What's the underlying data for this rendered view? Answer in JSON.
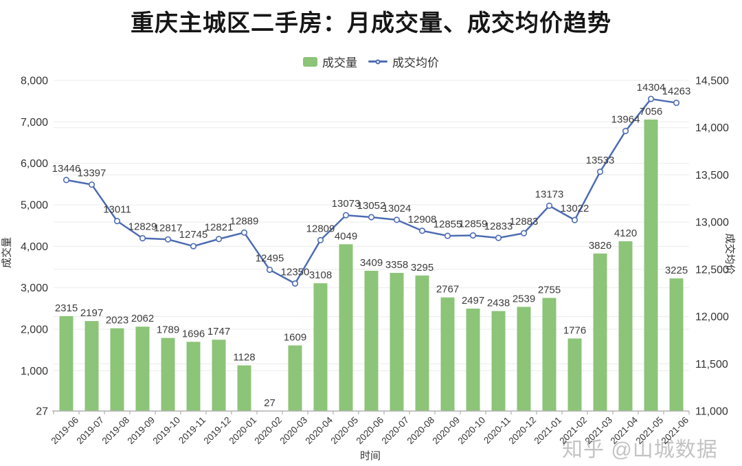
{
  "page": {
    "title": "重庆主城区二手房：月成交量、成交均价趋势"
  },
  "watermark": {
    "text": "知乎 @山城数据"
  },
  "chart_data": {
    "type": "bar",
    "subtype": "combo-bar-line-dual-axis",
    "title": "重庆主城区二手房：月成交量、成交均价趋势",
    "grid": true,
    "legend_position": "top",
    "categories": [
      "2019-06",
      "2019-07",
      "2019-08",
      "2019-09",
      "2019-10",
      "2019-11",
      "2019-12",
      "2020-01",
      "2020-02",
      "2020-03",
      "2020-04",
      "2020-05",
      "2020-06",
      "2020-07",
      "2020-08",
      "2020-09",
      "2020-10",
      "2020-11",
      "2020-12",
      "2021-01",
      "2021-02",
      "2021-03",
      "2021-04",
      "2021-05",
      "2021-06"
    ],
    "series": [
      {
        "name": "成交量",
        "type": "bar",
        "axis": "left",
        "values": [
          2315,
          2197,
          2023,
          2062,
          1789,
          1696,
          1747,
          1128,
          27,
          1609,
          3108,
          4049,
          3409,
          3358,
          3295,
          2767,
          2497,
          2438,
          2539,
          2755,
          1776,
          3826,
          4120,
          7056,
          3225
        ]
      },
      {
        "name": "成交均价",
        "type": "line",
        "axis": "right",
        "values": [
          13446,
          13397,
          13011,
          12829,
          12817,
          12745,
          12821,
          12889,
          12495,
          12350,
          12809,
          13073,
          13052,
          13024,
          12908,
          12855,
          12859,
          12833,
          12883,
          13173,
          13022,
          13533,
          13964,
          14304,
          14263
        ]
      }
    ],
    "x_axis": {
      "title": "时间"
    },
    "y_left": {
      "title": "成交量",
      "min": 27,
      "max": 8000,
      "ticks": [
        {
          "value": 8000,
          "label": "8,000"
        },
        {
          "value": 7000,
          "label": "7,000"
        },
        {
          "value": 6000,
          "label": "6,000"
        },
        {
          "value": 5000,
          "label": "5,000"
        },
        {
          "value": 4000,
          "label": "4,000"
        },
        {
          "value": 3000,
          "label": "3,000"
        },
        {
          "value": 2000,
          "label": "2,000"
        },
        {
          "value": 1000,
          "label": "1,000"
        },
        {
          "value": 27,
          "label": "27"
        }
      ]
    },
    "y_right": {
      "title": "成交均价",
      "min": 11000,
      "max": 14500,
      "ticks": [
        {
          "value": 14500,
          "label": "14,500"
        },
        {
          "value": 14000,
          "label": "14,000"
        },
        {
          "value": 13500,
          "label": "13,500"
        },
        {
          "value": 13000,
          "label": "13,000"
        },
        {
          "value": 12500,
          "label": "12,500"
        },
        {
          "value": 12000,
          "label": "12,000"
        },
        {
          "value": 11500,
          "label": "11,500"
        },
        {
          "value": 11000,
          "label": "11,000"
        }
      ]
    },
    "colors": {
      "bar": "#8cc478",
      "line": "#4d6cb2",
      "marker_fill": "#ffffff",
      "grid": "#ebebeb",
      "axis": "#b0b0b0",
      "data_label": "#3c3c3c",
      "tick_label": "#333333",
      "title": "#161616",
      "watermark": "#c3c3c3"
    }
  }
}
